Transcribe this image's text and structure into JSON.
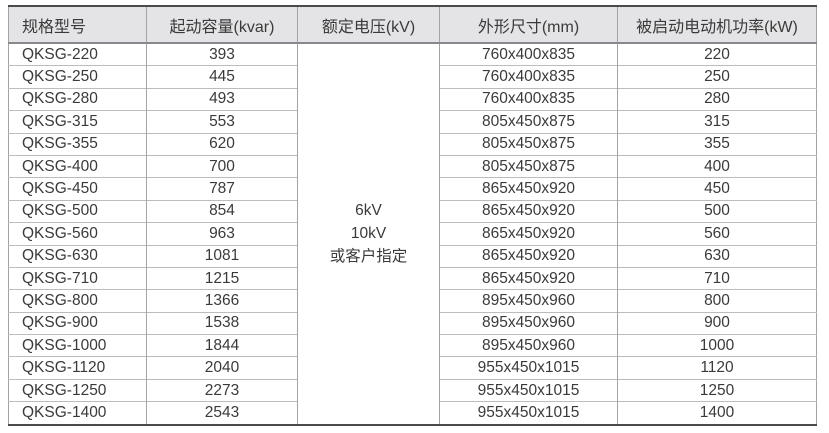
{
  "table": {
    "headers": [
      "规格型号",
      "起动容量(kvar)",
      "额定电压(kV)",
      "外形尺寸(mm)",
      "被启动电动机功率(kW)"
    ],
    "voltage_lines": [
      "6kV",
      "10kV",
      "或客户指定"
    ],
    "rows": [
      {
        "model": "QKSG-220",
        "capacity": "393",
        "dimensions": "760x400x835",
        "power": "220"
      },
      {
        "model": "QKSG-250",
        "capacity": "445",
        "dimensions": "760x400x835",
        "power": "250"
      },
      {
        "model": "QKSG-280",
        "capacity": "493",
        "dimensions": "760x400x835",
        "power": "280"
      },
      {
        "model": "QKSG-315",
        "capacity": "553",
        "dimensions": "805x450x875",
        "power": "315"
      },
      {
        "model": "QKSG-355",
        "capacity": "620",
        "dimensions": "805x450x875",
        "power": "355"
      },
      {
        "model": "QKSG-400",
        "capacity": "700",
        "dimensions": "805x450x875",
        "power": "400"
      },
      {
        "model": "QKSG-450",
        "capacity": "787",
        "dimensions": "865x450x920",
        "power": "450"
      },
      {
        "model": "QKSG-500",
        "capacity": "854",
        "dimensions": "865x450x920",
        "power": "500"
      },
      {
        "model": "QKSG-560",
        "capacity": "963",
        "dimensions": "865x450x920",
        "power": "560"
      },
      {
        "model": "QKSG-630",
        "capacity": "1081",
        "dimensions": "865x450x920",
        "power": "630"
      },
      {
        "model": "QKSG-710",
        "capacity": "1215",
        "dimensions": "865x450x920",
        "power": "710"
      },
      {
        "model": "QKSG-800",
        "capacity": "1366",
        "dimensions": "895x450x960",
        "power": "800"
      },
      {
        "model": "QKSG-900",
        "capacity": "1538",
        "dimensions": "895x450x960",
        "power": "900"
      },
      {
        "model": "QKSG-1000",
        "capacity": "1844",
        "dimensions": "895x450x960",
        "power": "1000"
      },
      {
        "model": "QKSG-1120",
        "capacity": "2040",
        "dimensions": "955x450x1015",
        "power": "1120"
      },
      {
        "model": "QKSG-1250",
        "capacity": "2273",
        "dimensions": "955x450x1015",
        "power": "1250"
      },
      {
        "model": "QKSG-1400",
        "capacity": "2543",
        "dimensions": "955x450x1015",
        "power": "1400"
      }
    ]
  },
  "colors": {
    "header_bg": "#e4e4e6",
    "border_dark": "#4a4a4c",
    "border_mid": "#88888c",
    "border_light": "#bcbcc0",
    "text": "#3a3a3a"
  }
}
